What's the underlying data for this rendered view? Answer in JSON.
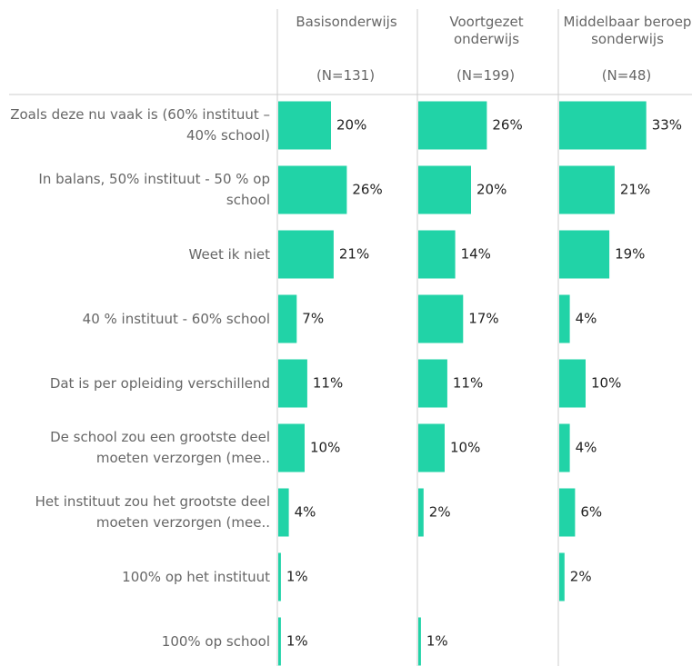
{
  "chart_data": {
    "type": "bar",
    "categories": [
      "Zoals deze nu vaak is (60% instituut – 40% school)",
      "In balans, 50% instituut - 50 % op school",
      "Weet ik niet",
      "40 % instituut - 60% school",
      "Dat is per opleiding verschillend",
      "De school zou een grootste deel moeten verzorgen (mee..",
      "Het instituut zou het grootste deel moeten verzorgen (mee..",
      "100% op het instituut",
      "100% op school"
    ],
    "series": [
      {
        "name": "Basisonderwijs",
        "n_label": "(N=131)",
        "color": "#21d3a7",
        "values": [
          20,
          26,
          21,
          7,
          11,
          10,
          4,
          1,
          1
        ],
        "value_labels": [
          "20%",
          "26%",
          "21%",
          "7%",
          "11%",
          "10%",
          "4%",
          "1%",
          "1%"
        ]
      },
      {
        "name": "Voortgezet onderwijs",
        "n_label": "(N=199)",
        "color": "#21d3a7",
        "values": [
          26,
          20,
          14,
          17,
          11,
          10,
          2,
          null,
          1
        ],
        "value_labels": [
          "26%",
          "20%",
          "14%",
          "17%",
          "11%",
          "10%",
          "2%",
          null,
          "1%"
        ]
      },
      {
        "name": "Middelbaar beroepsonderwijs",
        "n_label": "(N=48)",
        "color": "#21d3a7",
        "values": [
          33,
          21,
          19,
          4,
          10,
          4,
          6,
          2,
          null
        ],
        "value_labels": [
          "33%",
          "21%",
          "19%",
          "4%",
          "10%",
          "4%",
          "6%",
          "2%",
          null
        ]
      }
    ]
  }
}
